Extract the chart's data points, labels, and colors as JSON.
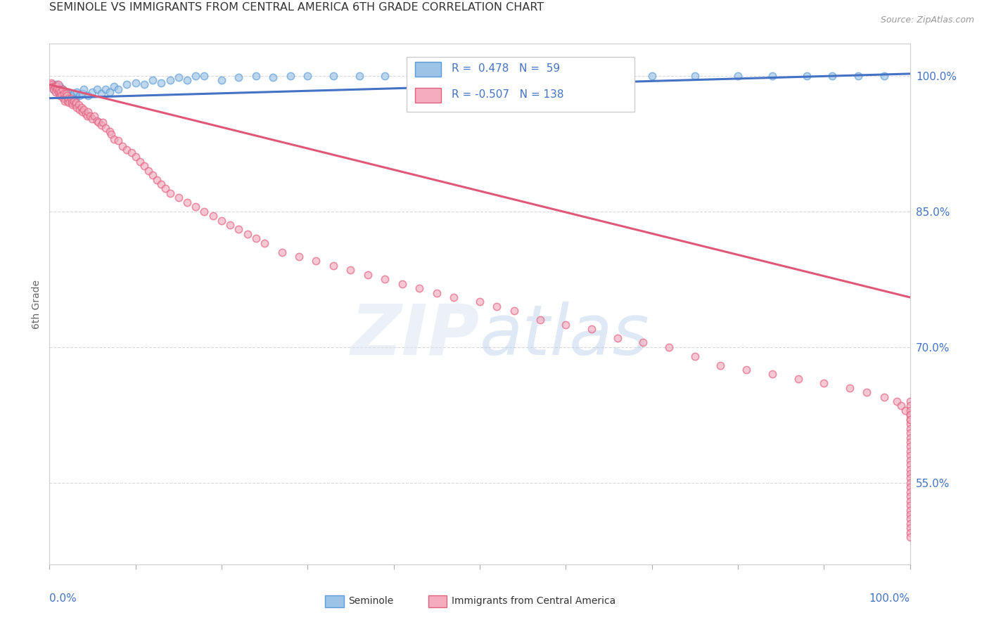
{
  "title": "SEMINOLE VS IMMIGRANTS FROM CENTRAL AMERICA 6TH GRADE CORRELATION CHART",
  "source": "Source: ZipAtlas.com",
  "ylabel": "6th Grade",
  "xlim": [
    0.0,
    100.0
  ],
  "ylim": [
    46.0,
    103.5
  ],
  "yticks": [
    55.0,
    70.0,
    85.0,
    100.0
  ],
  "ytick_labels": [
    "55.0%",
    "70.0%",
    "85.0%",
    "100.0%"
  ],
  "blue_R": 0.478,
  "blue_N": 59,
  "pink_R": -0.507,
  "pink_N": 138,
  "blue_color": "#9DC3E6",
  "pink_color": "#F4ACBE",
  "blue_edge_color": "#5B9BD5",
  "pink_edge_color": "#E06080",
  "blue_line_color": "#4472C4",
  "pink_line_color": "#E05878",
  "legend_label_blue": "Seminole",
  "legend_label_pink": "Immigrants from Central America",
  "watermark": "ZIPAtlas",
  "background_color": "#ffffff",
  "grid_color": "#d0d0d0",
  "title_color": "#333333",
  "source_color": "#999999",
  "blue_x": [
    0.5,
    0.8,
    1.0,
    1.2,
    1.5,
    1.5,
    1.8,
    2.0,
    2.2,
    2.5,
    2.8,
    3.0,
    3.2,
    3.5,
    3.8,
    4.0,
    4.5,
    5.0,
    5.5,
    6.0,
    6.5,
    7.0,
    7.5,
    8.0,
    9.0,
    10.0,
    11.0,
    12.0,
    13.0,
    14.0,
    15.0,
    16.0,
    17.0,
    18.0,
    20.0,
    22.0,
    24.0,
    26.0,
    28.0,
    30.0,
    33.0,
    36.0,
    39.0,
    42.0,
    45.0,
    48.0,
    51.0,
    54.0,
    57.0,
    60.0,
    65.0,
    70.0,
    75.0,
    80.0,
    84.0,
    88.0,
    91.0,
    94.0,
    97.0
  ],
  "blue_y": [
    98.5,
    99.0,
    98.2,
    98.8,
    97.8,
    98.5,
    97.5,
    98.0,
    98.2,
    97.8,
    98.0,
    97.5,
    98.2,
    97.8,
    98.0,
    98.5,
    97.8,
    98.2,
    98.5,
    98.0,
    98.5,
    98.2,
    98.8,
    98.5,
    99.0,
    99.2,
    99.0,
    99.5,
    99.2,
    99.5,
    99.8,
    99.5,
    100.0,
    100.0,
    99.5,
    99.8,
    100.0,
    99.8,
    100.0,
    100.0,
    100.0,
    100.0,
    100.0,
    100.0,
    100.0,
    100.0,
    100.0,
    100.0,
    100.0,
    100.0,
    100.0,
    100.0,
    100.0,
    100.0,
    100.0,
    100.0,
    100.0,
    100.0,
    100.0
  ],
  "pink_x": [
    0.2,
    0.3,
    0.4,
    0.5,
    0.6,
    0.7,
    0.8,
    0.9,
    1.0,
    1.0,
    1.1,
    1.2,
    1.3,
    1.4,
    1.5,
    1.6,
    1.7,
    1.8,
    1.9,
    2.0,
    2.1,
    2.2,
    2.3,
    2.5,
    2.6,
    2.7,
    2.8,
    3.0,
    3.1,
    3.2,
    3.4,
    3.5,
    3.7,
    3.8,
    4.0,
    4.2,
    4.4,
    4.5,
    4.7,
    5.0,
    5.2,
    5.5,
    5.7,
    6.0,
    6.2,
    6.5,
    7.0,
    7.2,
    7.5,
    8.0,
    8.5,
    9.0,
    9.5,
    10.0,
    10.5,
    11.0,
    11.5,
    12.0,
    12.5,
    13.0,
    13.5,
    14.0,
    15.0,
    16.0,
    17.0,
    18.0,
    19.0,
    20.0,
    21.0,
    22.0,
    23.0,
    24.0,
    25.0,
    27.0,
    29.0,
    31.0,
    33.0,
    35.0,
    37.0,
    39.0,
    41.0,
    43.0,
    45.0,
    47.0,
    50.0,
    52.0,
    54.0,
    57.0,
    60.0,
    63.0,
    66.0,
    69.0,
    72.0,
    75.0,
    78.0,
    81.0,
    84.0,
    87.0,
    90.0,
    93.0,
    95.0,
    97.0,
    98.5,
    99.0,
    99.5,
    100.0,
    100.0,
    100.0,
    100.0,
    100.0,
    100.0,
    100.0,
    100.0,
    100.0,
    100.0,
    100.0,
    100.0,
    100.0,
    100.0,
    100.0,
    100.0,
    100.0,
    100.0,
    100.0,
    100.0,
    100.0,
    100.0,
    100.0,
    100.0,
    100.0,
    100.0,
    100.0,
    100.0,
    100.0,
    100.0,
    100.0,
    100.0,
    100.0
  ],
  "pink_y": [
    99.2,
    99.0,
    98.8,
    98.5,
    98.8,
    98.2,
    98.8,
    98.5,
    99.0,
    98.2,
    98.5,
    97.8,
    98.2,
    97.8,
    98.5,
    97.5,
    98.0,
    97.2,
    98.0,
    97.8,
    97.2,
    97.5,
    97.0,
    97.5,
    97.0,
    96.8,
    97.2,
    96.8,
    97.0,
    96.5,
    96.8,
    96.2,
    96.5,
    96.0,
    96.2,
    95.8,
    95.5,
    96.0,
    95.5,
    95.2,
    95.5,
    95.0,
    94.8,
    94.5,
    94.8,
    94.2,
    93.8,
    93.5,
    93.0,
    92.8,
    92.2,
    91.8,
    91.5,
    91.0,
    90.5,
    90.0,
    89.5,
    89.0,
    88.5,
    88.0,
    87.5,
    87.0,
    86.5,
    86.0,
    85.5,
    85.0,
    84.5,
    84.0,
    83.5,
    83.0,
    82.5,
    82.0,
    81.5,
    80.5,
    80.0,
    79.5,
    79.0,
    78.5,
    78.0,
    77.5,
    77.0,
    76.5,
    76.0,
    75.5,
    75.0,
    74.5,
    74.0,
    73.0,
    72.5,
    72.0,
    71.0,
    70.5,
    70.0,
    69.0,
    68.0,
    67.5,
    67.0,
    66.5,
    66.0,
    65.5,
    65.0,
    64.5,
    64.0,
    63.5,
    63.0,
    62.5,
    62.0,
    61.5,
    61.0,
    60.5,
    60.0,
    59.5,
    59.0,
    58.5,
    58.0,
    57.5,
    57.0,
    56.5,
    56.0,
    55.5,
    55.0,
    54.5,
    54.0,
    53.5,
    53.0,
    52.5,
    52.0,
    51.5,
    51.0,
    50.5,
    50.0,
    49.5,
    49.0,
    64.0,
    63.5,
    63.0,
    62.5,
    62.0
  ]
}
